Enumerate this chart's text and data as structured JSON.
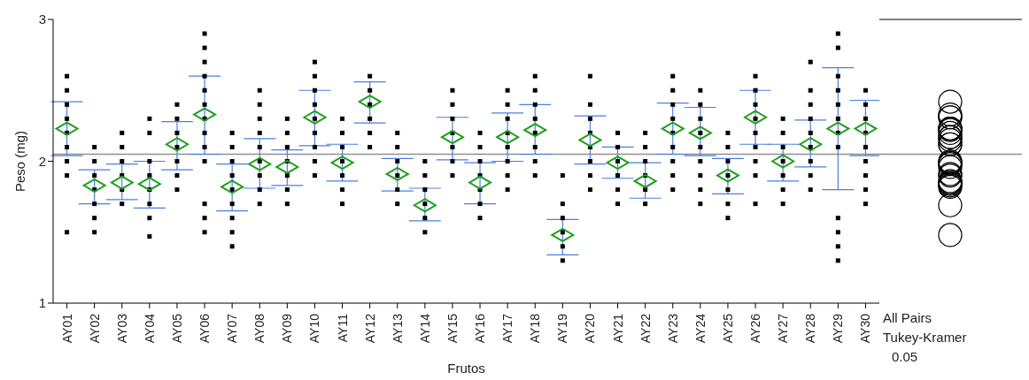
{
  "chart_data": {
    "type": "scatter",
    "xlabel": "Frutos",
    "ylabel": "Peso (mg)",
    "categories": [
      "AY01",
      "AY02",
      "AY03",
      "AY04",
      "AY05",
      "AY06",
      "AY07",
      "AY08",
      "AY09",
      "AY10",
      "AY11",
      "AY12",
      "AY13",
      "AY14",
      "AY15",
      "AY16",
      "AY17",
      "AY18",
      "AY19",
      "AY20",
      "AY21",
      "AY22",
      "AY23",
      "AY24",
      "AY25",
      "AY26",
      "AY27",
      "AY28",
      "AY29",
      "AY30"
    ],
    "ylim": [
      1,
      3
    ],
    "yticks": [
      1,
      2,
      3
    ],
    "grid": false,
    "legend": false,
    "ref_lines": [
      {
        "axis": "y",
        "value": 2.05,
        "color": "#909090"
      }
    ],
    "annotations": [
      "All Pairs",
      "Tukey-Kramer",
      "0.05"
    ],
    "series": [
      {
        "marker": "square",
        "color": "#000000",
        "x": [
          "AY01",
          "AY01",
          "AY01",
          "AY01",
          "AY01",
          "AY01",
          "AY01",
          "AY01",
          "AY01",
          "AY02",
          "AY02",
          "AY02",
          "AY02",
          "AY02",
          "AY02",
          "AY02",
          "AY03",
          "AY03",
          "AY03",
          "AY03",
          "AY03",
          "AY03",
          "AY04",
          "AY04",
          "AY04",
          "AY04",
          "AY04",
          "AY04",
          "AY04",
          "AY04",
          "AY05",
          "AY05",
          "AY05",
          "AY05",
          "AY05",
          "AY05",
          "AY05",
          "AY06",
          "AY06",
          "AY06",
          "AY06",
          "AY06",
          "AY06",
          "AY06",
          "AY06",
          "AY06",
          "AY06",
          "AY06",
          "AY06",
          "AY06",
          "AY07",
          "AY07",
          "AY07",
          "AY07",
          "AY07",
          "AY07",
          "AY07",
          "AY07",
          "AY07",
          "AY08",
          "AY08",
          "AY08",
          "AY08",
          "AY08",
          "AY08",
          "AY08",
          "AY08",
          "AY08",
          "AY09",
          "AY09",
          "AY09",
          "AY09",
          "AY09",
          "AY09",
          "AY09",
          "AY10",
          "AY10",
          "AY10",
          "AY10",
          "AY10",
          "AY10",
          "AY10",
          "AY10",
          "AY10",
          "AY11",
          "AY11",
          "AY11",
          "AY11",
          "AY11",
          "AY11",
          "AY11",
          "AY12",
          "AY12",
          "AY12",
          "AY12",
          "AY12",
          "AY12",
          "AY13",
          "AY13",
          "AY13",
          "AY13",
          "AY13",
          "AY13",
          "AY14",
          "AY14",
          "AY14",
          "AY14",
          "AY14",
          "AY14",
          "AY15",
          "AY15",
          "AY15",
          "AY15",
          "AY15",
          "AY15",
          "AY15",
          "AY16",
          "AY16",
          "AY16",
          "AY16",
          "AY16",
          "AY16",
          "AY16",
          "AY17",
          "AY17",
          "AY17",
          "AY17",
          "AY17",
          "AY17",
          "AY17",
          "AY17",
          "AY18",
          "AY18",
          "AY18",
          "AY18",
          "AY18",
          "AY18",
          "AY18",
          "AY18",
          "AY19",
          "AY19",
          "AY19",
          "AY19",
          "AY19",
          "AY19",
          "AY20",
          "AY20",
          "AY20",
          "AY20",
          "AY20",
          "AY20",
          "AY20",
          "AY20",
          "AY21",
          "AY21",
          "AY21",
          "AY21",
          "AY21",
          "AY21",
          "AY22",
          "AY22",
          "AY22",
          "AY22",
          "AY22",
          "AY22",
          "AY23",
          "AY23",
          "AY23",
          "AY23",
          "AY23",
          "AY23",
          "AY23",
          "AY23",
          "AY23",
          "AY24",
          "AY24",
          "AY24",
          "AY24",
          "AY24",
          "AY24",
          "AY24",
          "AY24",
          "AY24",
          "AY25",
          "AY25",
          "AY25",
          "AY25",
          "AY25",
          "AY25",
          "AY25",
          "AY26",
          "AY26",
          "AY26",
          "AY26",
          "AY26",
          "AY26",
          "AY26",
          "AY26",
          "AY26",
          "AY27",
          "AY27",
          "AY27",
          "AY27",
          "AY27",
          "AY27",
          "AY27",
          "AY28",
          "AY28",
          "AY28",
          "AY28",
          "AY28",
          "AY28",
          "AY28",
          "AY28",
          "AY28",
          "AY29",
          "AY29",
          "AY29",
          "AY29",
          "AY29",
          "AY29",
          "AY29",
          "AY29",
          "AY29",
          "AY29",
          "AY29",
          "AY29",
          "AY30",
          "AY30",
          "AY30",
          "AY30",
          "AY30",
          "AY30",
          "AY30",
          "AY30",
          "AY30"
        ],
        "values": [
          2.6,
          2.5,
          2.4,
          2.3,
          2.2,
          2.1,
          2.0,
          1.9,
          1.5,
          2.1,
          2.0,
          1.9,
          1.8,
          1.7,
          1.6,
          1.5,
          2.2,
          2.1,
          2.0,
          1.9,
          1.8,
          1.7,
          2.3,
          2.2,
          2.0,
          1.9,
          1.8,
          1.7,
          1.6,
          1.47,
          2.4,
          2.3,
          2.2,
          2.1,
          2.0,
          1.9,
          1.8,
          2.9,
          2.8,
          2.7,
          2.6,
          2.5,
          2.4,
          2.3,
          2.2,
          2.1,
          2.0,
          1.7,
          1.6,
          1.5,
          2.2,
          2.1,
          2.0,
          1.9,
          1.8,
          1.7,
          1.6,
          1.5,
          1.4,
          2.5,
          2.4,
          2.3,
          2.2,
          2.1,
          2.0,
          1.9,
          1.8,
          1.7,
          2.3,
          2.2,
          2.1,
          2.0,
          1.9,
          1.8,
          1.7,
          2.7,
          2.6,
          2.5,
          2.4,
          2.3,
          2.2,
          2.1,
          2.0,
          1.9,
          2.3,
          2.2,
          2.1,
          2.0,
          1.9,
          1.8,
          1.7,
          2.6,
          2.5,
          2.4,
          2.3,
          2.2,
          2.1,
          2.2,
          2.1,
          2.0,
          1.9,
          1.8,
          1.7,
          2.0,
          1.9,
          1.8,
          1.7,
          1.6,
          1.5,
          2.5,
          2.4,
          2.3,
          2.2,
          2.1,
          2.0,
          1.9,
          2.2,
          2.1,
          2.0,
          1.9,
          1.8,
          1.7,
          1.6,
          2.5,
          2.4,
          2.3,
          2.2,
          2.1,
          2.0,
          1.9,
          1.8,
          2.6,
          2.5,
          2.4,
          2.3,
          2.2,
          2.1,
          2.0,
          1.9,
          1.9,
          1.7,
          1.6,
          1.5,
          1.4,
          1.3,
          2.6,
          2.4,
          2.3,
          2.2,
          2.1,
          2.0,
          1.9,
          1.8,
          2.2,
          2.1,
          2.0,
          1.9,
          1.8,
          1.7,
          2.2,
          2.1,
          2.0,
          1.9,
          1.8,
          1.7,
          2.6,
          2.5,
          2.4,
          2.3,
          2.2,
          2.1,
          2.0,
          1.9,
          1.8,
          2.5,
          2.4,
          2.3,
          2.2,
          2.1,
          2.0,
          1.9,
          1.8,
          1.7,
          2.2,
          2.1,
          2.0,
          1.9,
          1.8,
          1.7,
          1.6,
          2.6,
          2.5,
          2.4,
          2.3,
          2.2,
          2.1,
          2.0,
          1.9,
          1.7,
          2.3,
          2.2,
          2.1,
          2.0,
          1.9,
          1.8,
          1.7,
          2.7,
          2.5,
          2.4,
          2.3,
          2.2,
          2.1,
          2.0,
          1.9,
          1.8,
          2.9,
          2.8,
          2.6,
          2.5,
          2.4,
          2.3,
          2.2,
          2.1,
          1.6,
          1.5,
          1.4,
          1.3,
          2.5,
          2.4,
          2.3,
          2.2,
          2.1,
          2.0,
          1.9,
          1.8,
          1.7
        ]
      },
      {
        "marker": "diamond",
        "color": "#1f9e1f",
        "values": [
          2.23,
          1.83,
          1.85,
          1.84,
          2.12,
          2.33,
          1.82,
          1.98,
          1.96,
          2.31,
          1.99,
          2.42,
          1.91,
          1.69,
          2.17,
          1.85,
          2.17,
          2.22,
          1.48,
          2.15,
          1.99,
          1.86,
          2.23,
          2.2,
          1.9,
          2.31,
          2.0,
          2.12,
          2.23,
          2.23
        ],
        "errors": [
          [
            2.04,
            2.42
          ],
          [
            1.7,
            1.94
          ],
          [
            1.73,
            1.98
          ],
          [
            1.67,
            2.0
          ],
          [
            1.94,
            2.28
          ],
          [
            2.05,
            2.6
          ],
          [
            1.65,
            1.98
          ],
          [
            1.81,
            2.16
          ],
          [
            1.83,
            2.08
          ],
          [
            2.11,
            2.5
          ],
          [
            1.86,
            2.12
          ],
          [
            2.27,
            2.56
          ],
          [
            1.79,
            2.02
          ],
          [
            1.58,
            1.81
          ],
          [
            2.01,
            2.31
          ],
          [
            1.7,
            1.99
          ],
          [
            2.0,
            2.34
          ],
          [
            2.05,
            2.4
          ],
          [
            1.34,
            1.59
          ],
          [
            1.98,
            2.32
          ],
          [
            1.88,
            2.1
          ],
          [
            1.74,
            1.99
          ],
          [
            2.05,
            2.41
          ],
          [
            2.04,
            2.38
          ],
          [
            1.77,
            2.02
          ],
          [
            2.12,
            2.5
          ],
          [
            1.86,
            2.12
          ],
          [
            1.96,
            2.29
          ],
          [
            1.8,
            2.66
          ],
          [
            2.04,
            2.43
          ]
        ]
      }
    ]
  }
}
